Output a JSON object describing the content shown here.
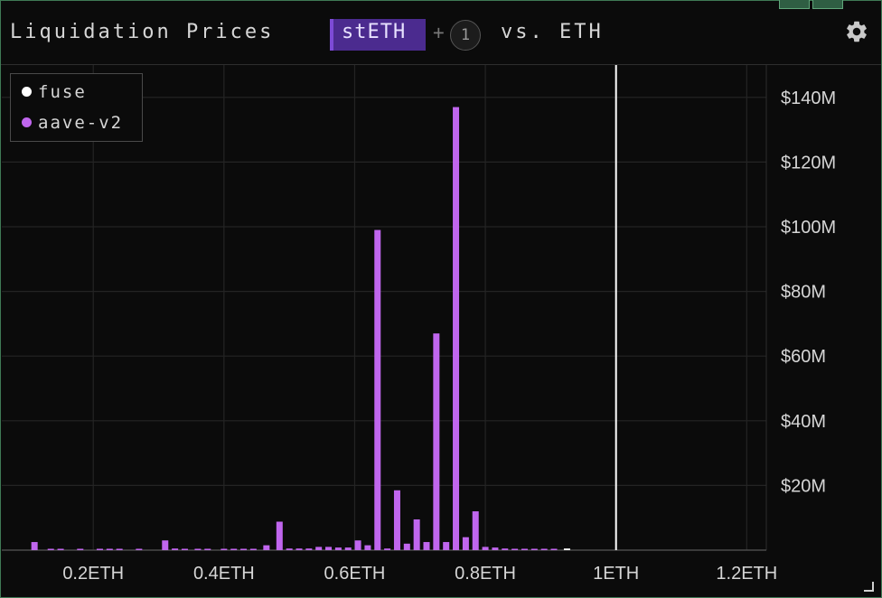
{
  "header": {
    "title": "Liquidation Prices",
    "token": "stETH",
    "plus": "+",
    "extra_count": "1",
    "vs_label": "vs. ETH"
  },
  "icons": {
    "settings": "gear-icon",
    "resize": "resize-handle-icon"
  },
  "colors": {
    "background": "#0b0b0b",
    "grid": "#242424",
    "fuse": "#ffffff",
    "aave": "#c066ee",
    "reference_line": "#ffffff",
    "accent": "#4b2b8f"
  },
  "chart_data": {
    "type": "bar",
    "title": "Liquidation Prices",
    "xlabel": "",
    "ylabel": "",
    "xlim": [
      0.06,
      1.23
    ],
    "ylim": [
      0,
      150
    ],
    "x_ticks": [
      0.2,
      0.4,
      0.6,
      0.8,
      1.0,
      1.2
    ],
    "x_tick_labels": [
      "0.2ETH",
      "0.4ETH",
      "0.6ETH",
      "0.8ETH",
      "1ETH",
      "1.2ETH"
    ],
    "y_ticks": [
      20,
      40,
      60,
      80,
      100,
      120,
      140
    ],
    "y_tick_labels": [
      "$20M",
      "$40M",
      "$60M",
      "$80M",
      "$100M",
      "$120M",
      "$140M"
    ],
    "y_unit": "$M",
    "reference_line_x": 1.0,
    "grid": true,
    "legend_position": "top-left",
    "series": [
      {
        "name": "fuse",
        "color": "#ffffff",
        "x": [
          0.925
        ],
        "values": [
          0.5
        ]
      },
      {
        "name": "aave-v2",
        "color": "#c066ee",
        "x": [
          0.11,
          0.135,
          0.15,
          0.18,
          0.21,
          0.225,
          0.24,
          0.27,
          0.31,
          0.325,
          0.34,
          0.36,
          0.375,
          0.4,
          0.415,
          0.43,
          0.445,
          0.465,
          0.485,
          0.5,
          0.515,
          0.53,
          0.545,
          0.56,
          0.575,
          0.59,
          0.605,
          0.62,
          0.635,
          0.65,
          0.665,
          0.68,
          0.695,
          0.71,
          0.725,
          0.74,
          0.755,
          0.77,
          0.785,
          0.8,
          0.815,
          0.83,
          0.845,
          0.86,
          0.875,
          0.89,
          0.905
        ],
        "values": [
          2.5,
          0.4,
          0.4,
          0.4,
          0.4,
          0.4,
          0.4,
          0.4,
          3.0,
          0.5,
          0.4,
          0.4,
          0.4,
          0.4,
          0.4,
          0.4,
          0.4,
          1.5,
          8.8,
          0.5,
          0.5,
          0.5,
          1.0,
          1.0,
          0.8,
          0.8,
          3.0,
          1.5,
          99.0,
          0.5,
          18.5,
          2.0,
          9.5,
          2.5,
          67.0,
          2.5,
          137.0,
          4.0,
          12.0,
          1.0,
          0.8,
          0.5,
          0.4,
          0.4,
          0.4,
          0.4,
          0.4
        ]
      }
    ]
  }
}
